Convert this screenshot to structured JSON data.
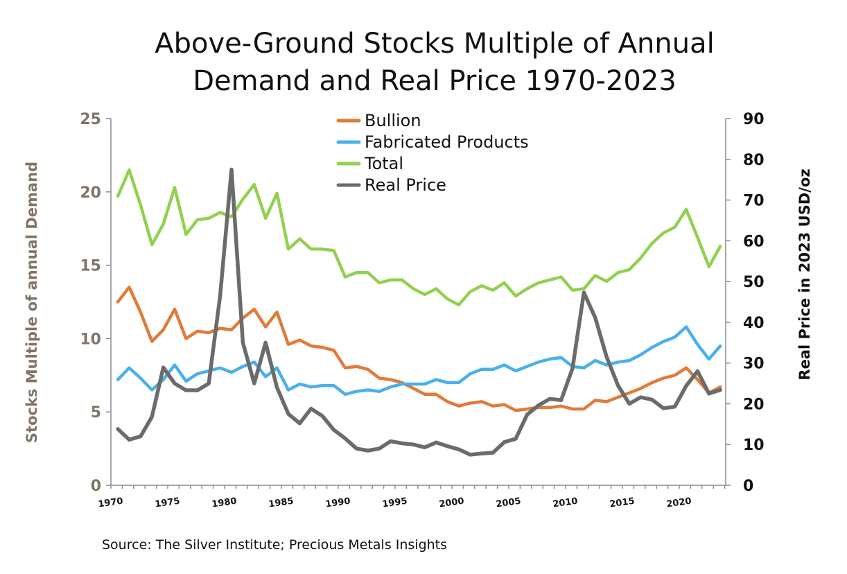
{
  "chart_data": {
    "type": "line",
    "title_lines": [
      "Above-Ground Stocks Multiple of Annual",
      "Demand and Real Price 1970-2023"
    ],
    "ylabel": "Stocks Multiple of annual Demand",
    "ylabel_right": "Real Price in 2023 USD/oz",
    "source": "Source: The Silver Institute; Precious Metals Insights",
    "ylim": [
      0,
      25
    ],
    "ylim_right": [
      0,
      90
    ],
    "yticks_left": [
      "0",
      "5",
      "10",
      "15",
      "20",
      "25"
    ],
    "yticks_right": [
      "0",
      "10",
      "20",
      "30",
      "40",
      "50",
      "60",
      "70",
      "80",
      "90"
    ],
    "xticks": [
      "1970",
      "1975",
      "1980",
      "1985",
      "1990",
      "1995",
      "2000",
      "2005",
      "2010",
      "2015",
      "2020"
    ],
    "x_start": 1970,
    "x_end": 2023,
    "legend_position": "top-center",
    "series": [
      {
        "name": "Bullion",
        "axis": "left",
        "color": "#e07b39",
        "x": [
          1970,
          1971,
          1972,
          1973,
          1974,
          1975,
          1976,
          1977,
          1978,
          1979,
          1980,
          1981,
          1982,
          1983,
          1984,
          1985,
          1986,
          1987,
          1988,
          1989,
          1990,
          1991,
          1992,
          1993,
          1994,
          1995,
          1996,
          1997,
          1998,
          1999,
          2000,
          2001,
          2002,
          2003,
          2004,
          2005,
          2006,
          2007,
          2008,
          2009,
          2010,
          2011,
          2012,
          2013,
          2014,
          2015,
          2016,
          2017,
          2018,
          2019,
          2020,
          2021,
          2022,
          2023
        ],
        "values": [
          12.5,
          13.5,
          11.8,
          9.8,
          10.6,
          12.0,
          10.0,
          10.5,
          10.4,
          10.7,
          10.6,
          11.4,
          12.0,
          10.8,
          11.8,
          9.6,
          9.9,
          9.5,
          9.4,
          9.2,
          8.0,
          8.1,
          7.9,
          7.3,
          7.2,
          7.0,
          6.6,
          6.2,
          6.2,
          5.7,
          5.4,
          5.6,
          5.7,
          5.4,
          5.5,
          5.1,
          5.2,
          5.3,
          5.3,
          5.4,
          5.2,
          5.2,
          5.8,
          5.7,
          6.0,
          6.3,
          6.6,
          7.0,
          7.3,
          7.5,
          8.0,
          7.2,
          6.3,
          6.7
        ]
      },
      {
        "name": "Fabricated Products",
        "axis": "left",
        "color": "#4ab0ec",
        "x": [
          1970,
          1971,
          1972,
          1973,
          1974,
          1975,
          1976,
          1977,
          1978,
          1979,
          1980,
          1981,
          1982,
          1983,
          1984,
          1985,
          1986,
          1987,
          1988,
          1989,
          1990,
          1991,
          1992,
          1993,
          1994,
          1995,
          1996,
          1997,
          1998,
          1999,
          2000,
          2001,
          2002,
          2003,
          2004,
          2005,
          2006,
          2007,
          2008,
          2009,
          2010,
          2011,
          2012,
          2013,
          2014,
          2015,
          2016,
          2017,
          2018,
          2019,
          2020,
          2021,
          2022,
          2023
        ],
        "values": [
          7.2,
          8.0,
          7.3,
          6.5,
          7.2,
          8.2,
          7.1,
          7.6,
          7.8,
          8.0,
          7.7,
          8.1,
          8.4,
          7.4,
          8.0,
          6.5,
          6.9,
          6.7,
          6.8,
          6.8,
          6.2,
          6.4,
          6.5,
          6.4,
          6.7,
          6.9,
          6.9,
          6.9,
          7.2,
          7.0,
          7.0,
          7.6,
          7.9,
          7.9,
          8.2,
          7.8,
          8.1,
          8.4,
          8.6,
          8.7,
          8.1,
          8.0,
          8.5,
          8.2,
          8.4,
          8.5,
          8.9,
          9.4,
          9.8,
          10.1,
          10.8,
          9.6,
          8.6,
          9.5
        ]
      },
      {
        "name": "Total",
        "axis": "left",
        "color": "#92d050",
        "x": [
          1970,
          1971,
          1972,
          1973,
          1974,
          1975,
          1976,
          1977,
          1978,
          1979,
          1980,
          1981,
          1982,
          1983,
          1984,
          1985,
          1986,
          1987,
          1988,
          1989,
          1990,
          1991,
          1992,
          1993,
          1994,
          1995,
          1996,
          1997,
          1998,
          1999,
          2000,
          2001,
          2002,
          2003,
          2004,
          2005,
          2006,
          2007,
          2008,
          2009,
          2010,
          2011,
          2012,
          2013,
          2014,
          2015,
          2016,
          2017,
          2018,
          2019,
          2020,
          2021,
          2022,
          2023
        ],
        "values": [
          19.7,
          21.5,
          19.1,
          16.4,
          17.8,
          20.3,
          17.1,
          18.1,
          18.2,
          18.6,
          18.3,
          19.5,
          20.5,
          18.2,
          19.9,
          16.1,
          16.8,
          16.1,
          16.1,
          16.0,
          14.2,
          14.5,
          14.5,
          13.8,
          14.0,
          14.0,
          13.4,
          13.0,
          13.4,
          12.7,
          12.3,
          13.2,
          13.6,
          13.3,
          13.8,
          12.9,
          13.4,
          13.8,
          14.0,
          14.2,
          13.3,
          13.4,
          14.3,
          13.9,
          14.5,
          14.7,
          15.5,
          16.5,
          17.2,
          17.6,
          18.8,
          16.9,
          14.9,
          16.3
        ]
      },
      {
        "name": "Real Price",
        "axis": "right",
        "color": "#6b6b6b",
        "x": [
          1970,
          1971,
          1972,
          1973,
          1974,
          1975,
          1976,
          1977,
          1978,
          1979,
          1980,
          1981,
          1982,
          1983,
          1984,
          1985,
          1986,
          1987,
          1988,
          1989,
          1990,
          1991,
          1992,
          1993,
          1994,
          1995,
          1996,
          1997,
          1998,
          1999,
          2000,
          2001,
          2002,
          2003,
          2004,
          2005,
          2006,
          2007,
          2008,
          2009,
          2010,
          2011,
          2012,
          2013,
          2014,
          2015,
          2016,
          2017,
          2018,
          2019,
          2020,
          2021,
          2022,
          2023
        ],
        "values": [
          13.8,
          11.2,
          12.0,
          16.8,
          28.9,
          25.0,
          23.3,
          23.3,
          25.0,
          46.5,
          77.5,
          35.0,
          25.0,
          35.0,
          24.0,
          17.5,
          15.2,
          18.8,
          17.0,
          13.6,
          11.5,
          9.0,
          8.5,
          9.0,
          10.8,
          10.3,
          10.0,
          9.3,
          10.5,
          9.6,
          8.8,
          7.5,
          7.8,
          8.0,
          10.6,
          11.4,
          17.3,
          19.6,
          21.2,
          20.9,
          28.7,
          47.3,
          41.1,
          31.5,
          24.5,
          20.0,
          21.6,
          21.0,
          18.9,
          19.3,
          24.4,
          28.0,
          22.5,
          23.4
        ]
      }
    ]
  }
}
